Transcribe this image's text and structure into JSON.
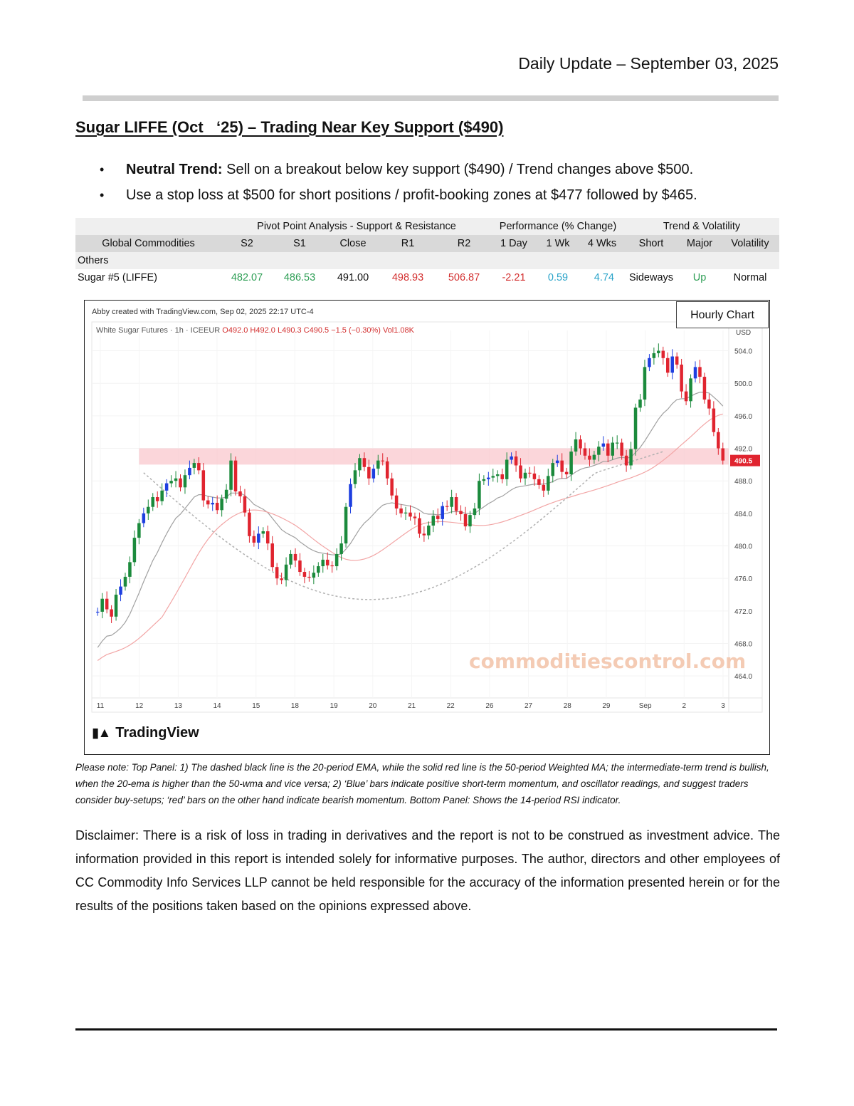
{
  "header": {
    "date": "Daily Update – September 03, 2025"
  },
  "title": "Sugar LIFFE (Oct   ‘25) – Trading Near Key Support ($490)",
  "bullets": [
    {
      "bold": "Neutral Trend:",
      "text": " Sell on a breakout below key support ($490) / Trend changes above $500."
    },
    {
      "bold": "",
      "text": "Use a stop loss at $500 for short positions / profit-booking zones at $477 followed by $465."
    }
  ],
  "table": {
    "group_headers": {
      "pivot": "Pivot Point Analysis - Support & Resistance",
      "performance": "Performance (% Change)",
      "trend": "Trend & Volatility"
    },
    "columns": [
      "Global Commodities",
      "S2",
      "S1",
      "Close",
      "R1",
      "R2",
      "1 Day",
      "1 Wk",
      "4 Wks",
      "Short",
      "Major",
      "Volatility"
    ],
    "section": "Others",
    "row": {
      "name": "Sugar #5 (LIFFE)",
      "s2": "482.07",
      "s1": "486.53",
      "close": "491.00",
      "r1": "498.93",
      "r2": "506.87",
      "day1": "-2.21",
      "wk1": "0.59",
      "wk4": "4.74",
      "short": "Sideways",
      "major": "Up",
      "volatility": "Normal"
    },
    "colors": {
      "support": "#2e9e55",
      "resistance": "#d32f2f",
      "negative": "#d32f2f",
      "positive": "#29a3c9",
      "up": "#2e9e55"
    }
  },
  "chart": {
    "badge": "Hourly Chart",
    "caption": "Abby created with TradingView.com, Sep 02, 2025 22:17 UTC-4",
    "legend_name": "White Sugar Futures · 1h · ICEEUR",
    "legend_ohlc": "O492.0  H492.0  L490.3  C490.5  −1.5 (−0.30%)  Vol1.08K",
    "currency": "USD",
    "last_price": "490.5",
    "watermark": "commoditiescontrol.com",
    "logo": "TradingView",
    "chart_data": {
      "type": "candlestick",
      "title": "",
      "ylim": [
        462,
        506.5
      ],
      "y_ticks": [
        "504.0",
        "500.0",
        "496.0",
        "492.0",
        "488.0",
        "484.0",
        "480.0",
        "476.0",
        "472.0",
        "468.0",
        "464.0"
      ],
      "x_ticks": [
        "11",
        "12",
        "13",
        "14",
        "15",
        "18",
        "19",
        "20",
        "21",
        "22",
        "26",
        "27",
        "28",
        "29",
        "Sep",
        "2",
        "3"
      ],
      "support_zone": [
        490.0,
        492.0
      ],
      "closes": [
        471.9,
        473.5,
        472.2,
        471.3,
        474.0,
        475.0,
        476.2,
        478.0,
        481.0,
        482.8,
        484.0,
        484.8,
        486.0,
        485.5,
        486.8,
        487.7,
        488.0,
        488.3,
        487.2,
        488.7,
        489.6,
        490.2,
        489.3,
        485.6,
        485.1,
        485.3,
        484.4,
        485.8,
        486.9,
        490.5,
        486.7,
        486.1,
        484.1,
        481.2,
        480.4,
        481.5,
        481.8,
        480.3,
        477.4,
        476.0,
        475.8,
        477.7,
        479.0,
        478.2,
        476.8,
        476.2,
        476.1,
        476.7,
        477.5,
        478.3,
        477.6,
        477.5,
        479.0,
        480.3,
        484.8,
        487.6,
        489.3,
        490.8,
        489.7,
        488.3,
        489.5,
        490.5,
        490.4,
        488.3,
        486.2,
        484.6,
        484.0,
        484.1,
        483.6,
        483.4,
        481.5,
        481.3,
        482.5,
        483.7,
        483.3,
        484.9,
        484.8,
        486.0,
        484.3,
        483.9,
        482.4,
        483.8,
        484.6,
        488.0,
        488.2,
        488.4,
        488.6,
        488.8,
        488.2,
        490.6,
        491.0,
        489.9,
        488.3,
        489.0,
        488.9,
        488.2,
        487.5,
        486.8,
        488.6,
        490.2,
        490.5,
        489.1,
        488.8,
        491.6,
        493.1,
        492.0,
        491.1,
        490.6,
        491.2,
        492.2,
        492.6,
        491.1,
        492.7,
        492.7,
        491.1,
        489.9,
        491.9,
        497.0,
        498.0,
        502.0,
        503.1,
        503.7,
        504.0,
        503.1,
        501.3,
        503.3,
        502.3,
        499.0,
        497.8,
        500.6,
        502.0,
        500.8,
        498.0,
        496.9,
        494.0,
        492.0,
        490.5
      ],
      "ema20": [
        467.5,
        468.3,
        468.9,
        469.0,
        469.4,
        469.9,
        470.6,
        471.6,
        472.9,
        474.2,
        475.6,
        476.9,
        478.2,
        479.2,
        480.4,
        481.5,
        482.5,
        483.4,
        483.9,
        484.6,
        485.3,
        486.0,
        486.3,
        486.3,
        486.1,
        486.0,
        485.9,
        485.9,
        486.0,
        486.5,
        486.5,
        486.5,
        486.2,
        485.7,
        485.1,
        484.8,
        484.5,
        484.1,
        483.4,
        482.7,
        482.0,
        481.6,
        481.3,
        481.0,
        480.5,
        480.1,
        479.7,
        479.4,
        479.2,
        479.1,
        479.0,
        478.9,
        478.9,
        479.0,
        479.6,
        480.3,
        481.2,
        482.1,
        482.8,
        483.3,
        483.9,
        484.5,
        485.0,
        485.2,
        485.3,
        485.2,
        485.1,
        485.0,
        484.9,
        484.7,
        484.4,
        484.0,
        483.9,
        483.9,
        483.8,
        483.9,
        484.0,
        484.2,
        484.2,
        484.2,
        484.0,
        484.0,
        484.0,
        484.4,
        484.8,
        485.2,
        485.5,
        485.9,
        486.1,
        486.5,
        486.9,
        487.2,
        487.3,
        487.4,
        487.5,
        487.6,
        487.6,
        487.6,
        487.7,
        487.9,
        488.2,
        488.3,
        488.3,
        488.7,
        489.1,
        489.4,
        489.6,
        489.7,
        489.9,
        490.1,
        490.4,
        490.4,
        490.6,
        490.8,
        490.9,
        490.8,
        490.9,
        491.5,
        492.1,
        492.9,
        493.8,
        494.7,
        495.6,
        496.3,
        496.8,
        497.5,
        498.0,
        498.1,
        498.1,
        498.4,
        498.7,
        498.9,
        498.9,
        498.8,
        498.3,
        497.8,
        497.2
      ]
    }
  },
  "note": "Please note: Top Panel: 1) The dashed black line is the 20-period EMA, while the solid red line is the 50-period Weighted MA; the intermediate-term trend is bullish, when the 20-ema is higher than the 50-wma and vice versa; 2)   ‘Blue’   bars indicate positive short-term momentum, and oscillator readings, and suggest traders consider buy-setups;   ‘red’   bars on the other hand indicate bearish momentum. Bottom Panel: Shows the 14-period RSI indicator.",
  "disclaimer": "Disclaimer: There is a risk of loss in trading in derivatives and the report is not to be construed as investment advice. The information provided in this report is intended solely for informative purposes. The author, directors and other employees of CC Commodity Info Services LLP cannot be held responsible for the accuracy of the information presented herein or for the results of the positions taken based on the opinions expressed above."
}
